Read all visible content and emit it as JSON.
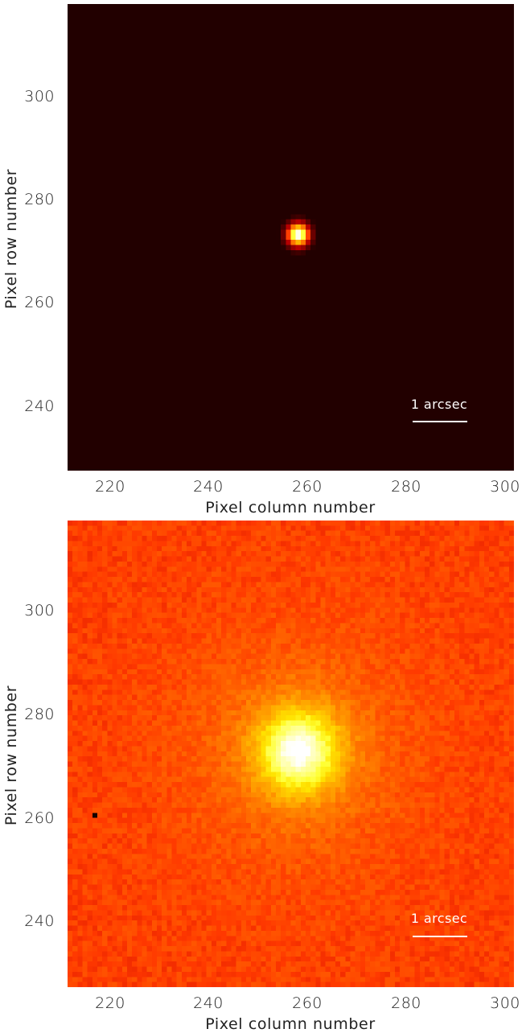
{
  "panels": [
    {
      "id": "top",
      "x_axis_label": "Pixel column number",
      "y_axis_label": "Pixel row number",
      "x_ticks": [
        "220",
        "240",
        "260",
        "280",
        "300"
      ],
      "y_ticks": [
        "240",
        "260",
        "280",
        "300"
      ],
      "x_range": [
        211,
        301
      ],
      "y_range": [
        227,
        318
      ],
      "scale_label": "1 arcsec",
      "source_center": [
        257.5,
        273
      ],
      "colormap": "red-temperature",
      "background_color": "#220000"
    },
    {
      "id": "bottom",
      "x_axis_label": "Pixel column number",
      "y_axis_label": "Pixel row number",
      "x_ticks": [
        "220",
        "240",
        "260",
        "280",
        "300"
      ],
      "y_ticks": [
        "240",
        "260",
        "280",
        "300"
      ],
      "x_range": [
        211,
        301
      ],
      "y_range": [
        227,
        318
      ],
      "scale_label": "1 arcsec",
      "source_center": [
        257.5,
        273
      ],
      "colormap": "red-temperature",
      "background_color": "#b41e00"
    }
  ]
}
